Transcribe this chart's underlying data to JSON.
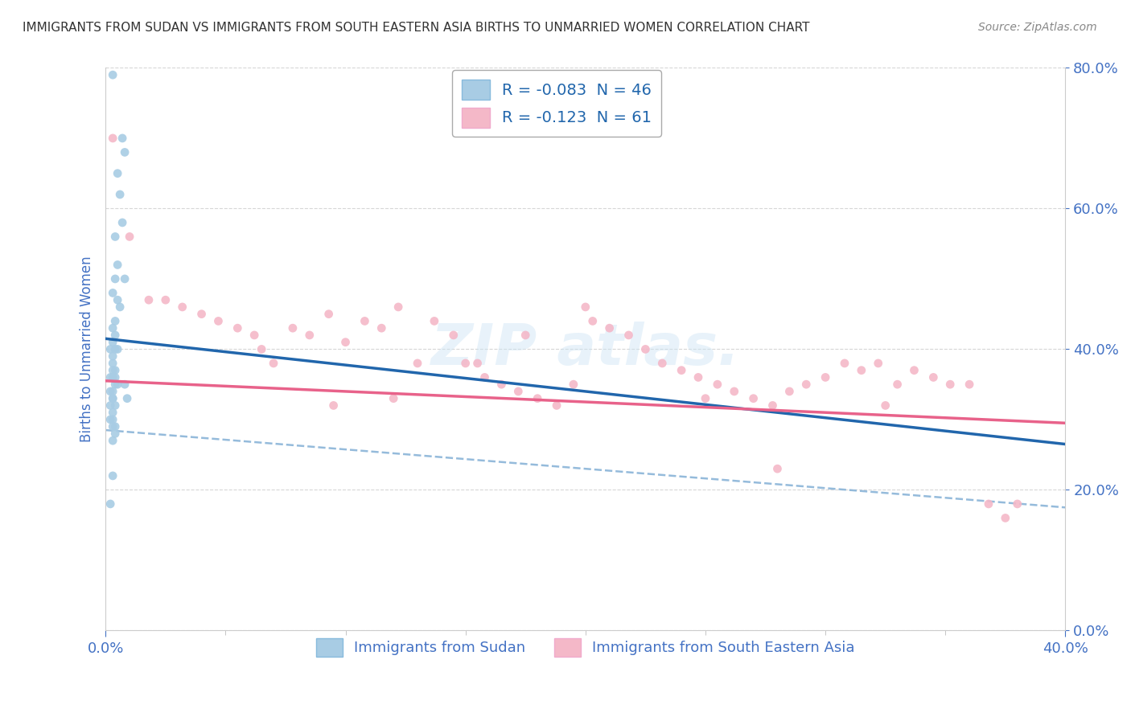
{
  "title": "IMMIGRANTS FROM SUDAN VS IMMIGRANTS FROM SOUTH EASTERN ASIA BIRTHS TO UNMARRIED WOMEN CORRELATION CHART",
  "source": "Source: ZipAtlas.com",
  "ylabel_label": "Births to Unmarried Women",
  "legend_label_blue": "Immigrants from Sudan",
  "legend_label_pink": "Immigrants from South Eastern Asia",
  "blue_color": "#a8cce4",
  "pink_color": "#f4b8c8",
  "blue_line_color": "#2166ac",
  "pink_line_color": "#e8628a",
  "dashed_line_color": "#8ab4d8",
  "axis_label_color": "#4472c4",
  "xlim": [
    0.0,
    0.4
  ],
  "ylim": [
    0.0,
    0.8
  ],
  "blue_R": -0.083,
  "blue_N": 46,
  "pink_R": -0.123,
  "pink_N": 61,
  "blue_line_x0": 0.0,
  "blue_line_y0": 0.415,
  "blue_line_x1": 0.4,
  "blue_line_y1": 0.265,
  "pink_line_x0": 0.0,
  "pink_line_y0": 0.355,
  "pink_line_x1": 0.4,
  "pink_line_y1": 0.295,
  "dash_line_x0": 0.0,
  "dash_line_y0": 0.285,
  "dash_line_x1": 0.4,
  "dash_line_y1": 0.175,
  "blue_scatter_x": [
    0.003,
    0.007,
    0.008,
    0.005,
    0.006,
    0.007,
    0.004,
    0.005,
    0.008,
    0.004,
    0.003,
    0.005,
    0.006,
    0.004,
    0.003,
    0.004,
    0.003,
    0.005,
    0.002,
    0.004,
    0.003,
    0.003,
    0.004,
    0.003,
    0.002,
    0.004,
    0.003,
    0.004,
    0.005,
    0.003,
    0.002,
    0.003,
    0.003,
    0.004,
    0.002,
    0.003,
    0.003,
    0.002,
    0.004,
    0.003,
    0.004,
    0.003,
    0.008,
    0.009,
    0.003,
    0.002
  ],
  "blue_scatter_y": [
    0.79,
    0.7,
    0.68,
    0.65,
    0.62,
    0.58,
    0.56,
    0.52,
    0.5,
    0.5,
    0.48,
    0.47,
    0.46,
    0.44,
    0.43,
    0.42,
    0.41,
    0.4,
    0.4,
    0.4,
    0.39,
    0.38,
    0.37,
    0.37,
    0.36,
    0.36,
    0.36,
    0.35,
    0.35,
    0.34,
    0.34,
    0.33,
    0.33,
    0.32,
    0.32,
    0.31,
    0.3,
    0.3,
    0.29,
    0.29,
    0.28,
    0.27,
    0.35,
    0.33,
    0.22,
    0.18
  ],
  "pink_scatter_x": [
    0.003,
    0.01,
    0.018,
    0.025,
    0.032,
    0.04,
    0.047,
    0.055,
    0.062,
    0.07,
    0.078,
    0.085,
    0.093,
    0.1,
    0.108,
    0.115,
    0.122,
    0.13,
    0.137,
    0.145,
    0.15,
    0.158,
    0.165,
    0.172,
    0.18,
    0.188,
    0.195,
    0.203,
    0.21,
    0.218,
    0.225,
    0.232,
    0.24,
    0.247,
    0.255,
    0.262,
    0.27,
    0.278,
    0.285,
    0.292,
    0.3,
    0.308,
    0.315,
    0.322,
    0.33,
    0.337,
    0.345,
    0.352,
    0.36,
    0.368,
    0.375,
    0.12,
    0.095,
    0.175,
    0.25,
    0.325,
    0.2,
    0.28,
    0.155,
    0.065,
    0.38
  ],
  "pink_scatter_y": [
    0.7,
    0.56,
    0.47,
    0.47,
    0.46,
    0.45,
    0.44,
    0.43,
    0.42,
    0.38,
    0.43,
    0.42,
    0.45,
    0.41,
    0.44,
    0.43,
    0.46,
    0.38,
    0.44,
    0.42,
    0.38,
    0.36,
    0.35,
    0.34,
    0.33,
    0.32,
    0.35,
    0.44,
    0.43,
    0.42,
    0.4,
    0.38,
    0.37,
    0.36,
    0.35,
    0.34,
    0.33,
    0.32,
    0.34,
    0.35,
    0.36,
    0.38,
    0.37,
    0.38,
    0.35,
    0.37,
    0.36,
    0.35,
    0.35,
    0.18,
    0.16,
    0.33,
    0.32,
    0.42,
    0.33,
    0.32,
    0.46,
    0.23,
    0.38,
    0.4,
    0.18
  ]
}
